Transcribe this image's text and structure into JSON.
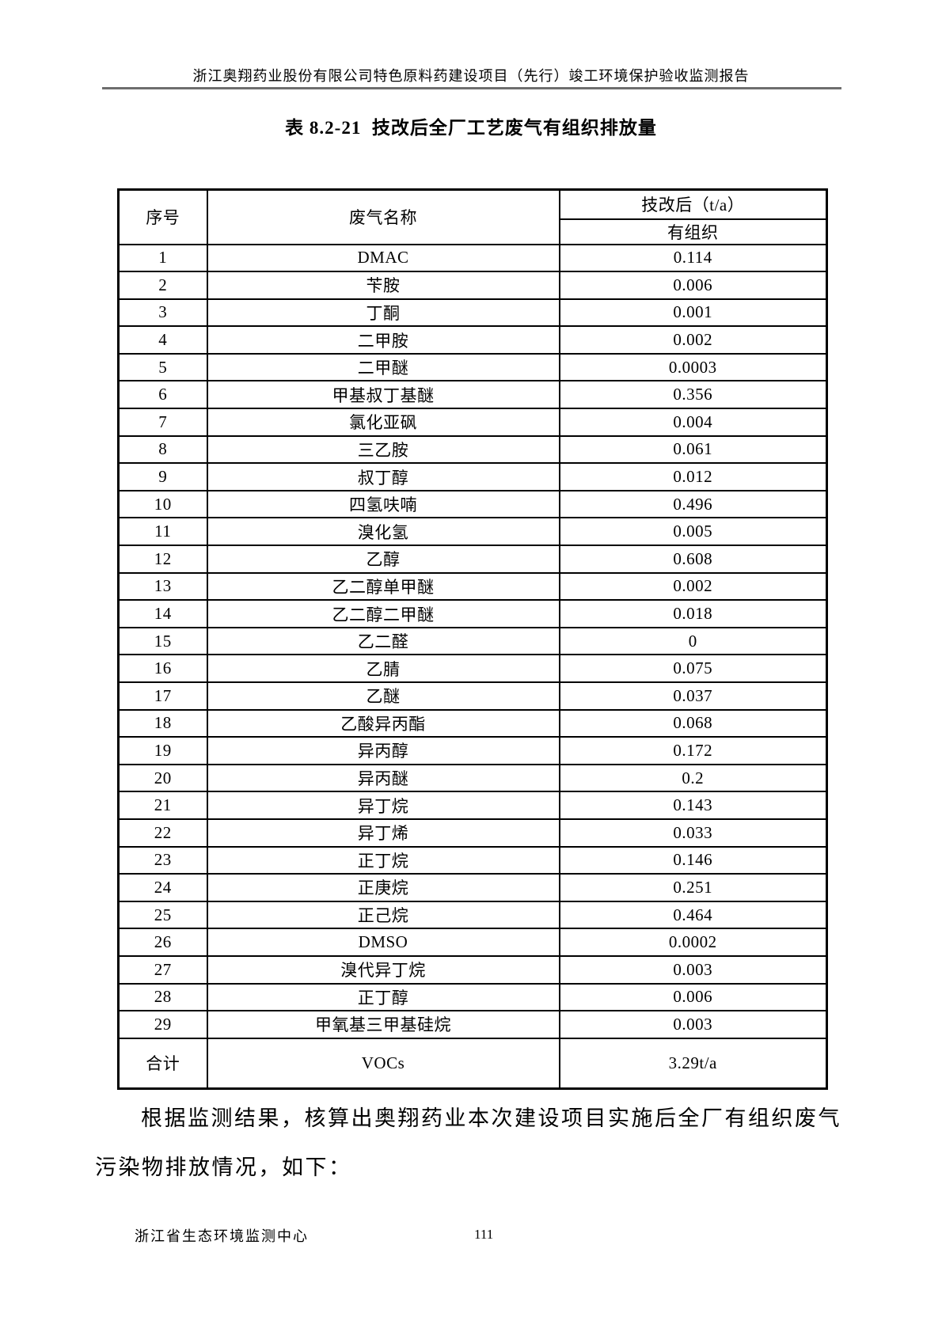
{
  "header": {
    "title": "浙江奥翔药业股份有限公司特色原料药建设项目（先行）竣工环境保护验收监测报告"
  },
  "table": {
    "title": "表 8.2-21  技改后全厂工艺废气有组织排放量",
    "columns": {
      "index": "序号",
      "gas_name": "废气名称",
      "after_retrofit": "技改后（t/a）",
      "organized": "有组织"
    },
    "rows": [
      {
        "no": "1",
        "name": "DMAC",
        "value": "0.114"
      },
      {
        "no": "2",
        "name": "苄胺",
        "value": "0.006"
      },
      {
        "no": "3",
        "name": "丁酮",
        "value": "0.001"
      },
      {
        "no": "4",
        "name": "二甲胺",
        "value": "0.002"
      },
      {
        "no": "5",
        "name": "二甲醚",
        "value": "0.0003"
      },
      {
        "no": "6",
        "name": "甲基叔丁基醚",
        "value": "0.356"
      },
      {
        "no": "7",
        "name": "氯化亚砜",
        "value": "0.004"
      },
      {
        "no": "8",
        "name": "三乙胺",
        "value": "0.061"
      },
      {
        "no": "9",
        "name": "叔丁醇",
        "value": "0.012"
      },
      {
        "no": "10",
        "name": "四氢呋喃",
        "value": "0.496"
      },
      {
        "no": "11",
        "name": "溴化氢",
        "value": "0.005"
      },
      {
        "no": "12",
        "name": "乙醇",
        "value": "0.608"
      },
      {
        "no": "13",
        "name": "乙二醇单甲醚",
        "value": "0.002"
      },
      {
        "no": "14",
        "name": "乙二醇二甲醚",
        "value": "0.018"
      },
      {
        "no": "15",
        "name": "乙二醛",
        "value": "0"
      },
      {
        "no": "16",
        "name": "乙腈",
        "value": "0.075"
      },
      {
        "no": "17",
        "name": "乙醚",
        "value": "0.037"
      },
      {
        "no": "18",
        "name": "乙酸异丙酯",
        "value": "0.068"
      },
      {
        "no": "19",
        "name": "异丙醇",
        "value": "0.172"
      },
      {
        "no": "20",
        "name": "异丙醚",
        "value": "0.2"
      },
      {
        "no": "21",
        "name": "异丁烷",
        "value": "0.143"
      },
      {
        "no": "22",
        "name": "异丁烯",
        "value": "0.033"
      },
      {
        "no": "23",
        "name": "正丁烷",
        "value": "0.146"
      },
      {
        "no": "24",
        "name": "正庚烷",
        "value": "0.251"
      },
      {
        "no": "25",
        "name": "正己烷",
        "value": "0.464"
      },
      {
        "no": "26",
        "name": "DMSO",
        "value": "0.0002"
      },
      {
        "no": "27",
        "name": "溴代异丁烷",
        "value": "0.003"
      },
      {
        "no": "28",
        "name": "正丁醇",
        "value": "0.006"
      },
      {
        "no": "29",
        "name": "甲氧基三甲基硅烷",
        "value": "0.003"
      },
      {
        "no": "合计",
        "name": "VOCs",
        "value": "3.29t/a",
        "total": true
      }
    ]
  },
  "paragraph": {
    "lines": [
      "根据监测结果，核算出奥翔药业本次建设项目实施后全厂有组织废气",
      "污染物排放情况，如下："
    ]
  },
  "footer": {
    "org": "浙江省生态环境监测中心",
    "page": "111"
  }
}
